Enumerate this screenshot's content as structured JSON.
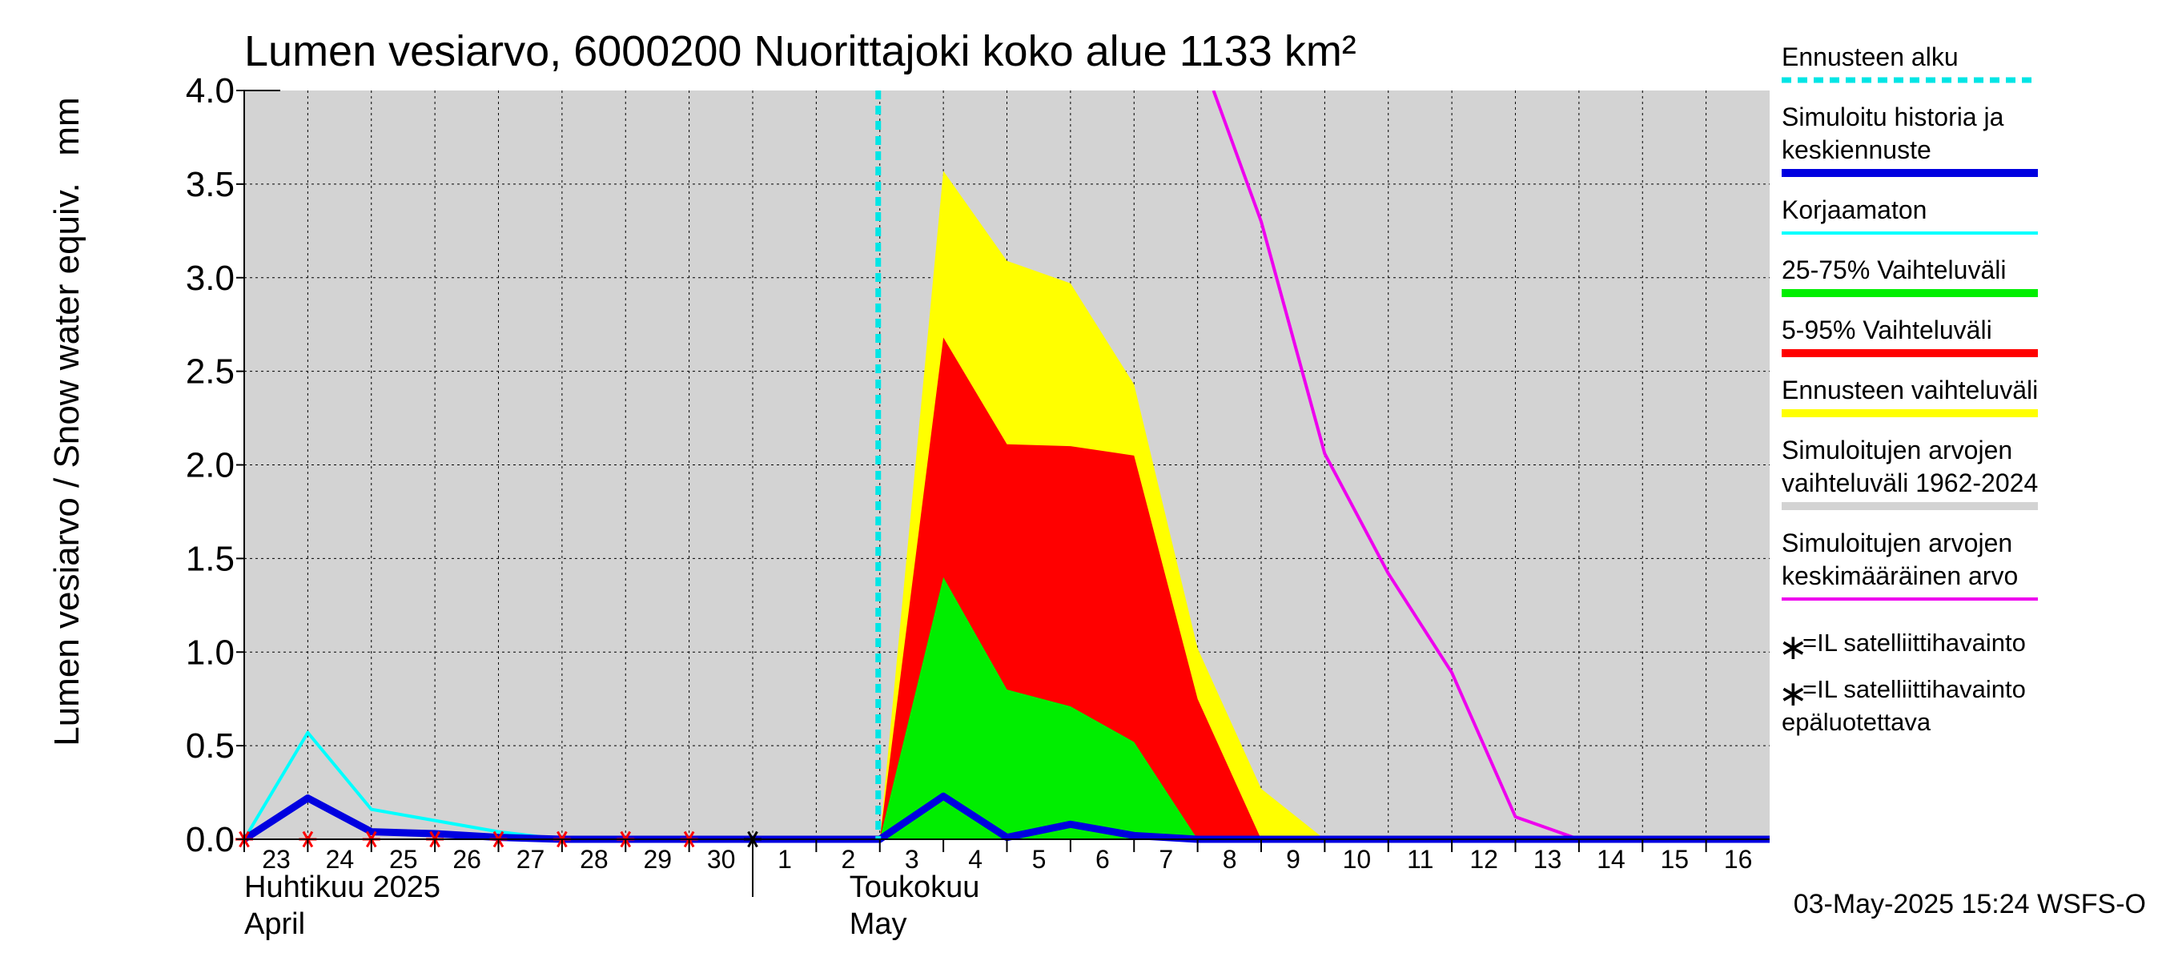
{
  "chart_data": {
    "type": "area",
    "title": "Lumen vesiarvo, 6000200 Nuorittajoki koko alue 1133 km²",
    "ylabel": "Lumen vesiarvo / Snow water equiv.",
    "yunit": "mm",
    "ylim": [
      0,
      4.0
    ],
    "yticks": [
      "0.0",
      "0.5",
      "1.0",
      "1.5",
      "2.0",
      "2.5",
      "3.0",
      "3.5",
      "4.0"
    ],
    "xlim": [
      0,
      24
    ],
    "x_tick_labels": [
      "23",
      "24",
      "25",
      "26",
      "27",
      "28",
      "29",
      "30",
      "1",
      "2",
      "3",
      "4",
      "5",
      "6",
      "7",
      "8",
      "9",
      "10",
      "11",
      "12",
      "13",
      "14",
      "15",
      "16"
    ],
    "month_labels": [
      {
        "fi": "Huhtikuu  2025",
        "en": "April"
      },
      {
        "fi": "Toukokuu",
        "en": "May"
      }
    ],
    "forecast_start_day": 10,
    "series": [
      {
        "name": "Simuloitujen arvojen vaihteluväli 1962-2024",
        "kind": "band",
        "x": [
          0,
          24
        ],
        "lower": [
          0,
          0
        ],
        "upper": [
          4.0,
          4.0
        ]
      },
      {
        "name": "Ennusteen vaihteluväli",
        "kind": "band",
        "x": [
          10,
          11,
          12,
          13,
          14,
          15,
          16,
          17,
          18
        ],
        "lower": [
          0,
          0,
          0,
          0,
          0,
          0,
          0,
          0,
          0
        ],
        "upper": [
          0,
          3.57,
          3.09,
          2.97,
          2.43,
          1.02,
          0.27,
          0,
          0
        ]
      },
      {
        "name": "5-95% Vaihteluväli",
        "kind": "band",
        "x": [
          10,
          11,
          12,
          13,
          14,
          15,
          16
        ],
        "lower": [
          0,
          0,
          0,
          0,
          0,
          0,
          0
        ],
        "upper": [
          0,
          2.68,
          2.11,
          2.1,
          2.05,
          0.75,
          0
        ]
      },
      {
        "name": "25-75% Vaihteluväli",
        "kind": "band",
        "x": [
          10,
          11,
          12,
          13,
          14,
          15
        ],
        "lower": [
          0,
          0,
          0,
          0,
          0,
          0
        ],
        "upper": [
          0,
          1.4,
          0.8,
          0.71,
          0.52,
          0
        ]
      },
      {
        "name": "Simuloitujen arvojen keskimääräinen arvo",
        "kind": "line",
        "x": [
          15.25,
          16,
          17,
          18,
          19,
          20,
          21,
          22,
          23,
          24
        ],
        "y": [
          4.0,
          3.3,
          2.06,
          1.42,
          0.89,
          0.12,
          0,
          0,
          0,
          0
        ]
      },
      {
        "name": "Korjaamaton",
        "kind": "line",
        "x": [
          0,
          1,
          2,
          3,
          4,
          5,
          6,
          7,
          8,
          9,
          10
        ],
        "y": [
          0,
          0.57,
          0.16,
          0.1,
          0.04,
          0,
          0,
          0,
          0,
          0,
          0
        ]
      },
      {
        "name": "Simuloitu historia ja keskiennuste",
        "kind": "line",
        "x": [
          0,
          1,
          2,
          3,
          4,
          5,
          6,
          7,
          8,
          9,
          10,
          11,
          12,
          13,
          14,
          15,
          16,
          17,
          18,
          19,
          20,
          21,
          22,
          23,
          24
        ],
        "y": [
          0,
          0.22,
          0.04,
          0.03,
          0.01,
          0,
          0,
          0,
          0,
          0,
          0,
          0.23,
          0.01,
          0.08,
          0.02,
          0,
          0,
          0,
          0,
          0,
          0,
          0,
          0,
          0,
          0
        ]
      }
    ],
    "observations_reliable": {
      "x": [
        8
      ],
      "y": [
        0
      ]
    },
    "observations_unreliable": {
      "x": [
        0,
        1,
        2,
        3,
        4,
        5,
        6,
        7
      ],
      "y": [
        0,
        0,
        0,
        0,
        0,
        0,
        0,
        0
      ]
    },
    "legend": [
      {
        "id": "forecast-start",
        "lines": [
          "Ennusteen alku"
        ],
        "style": "dashed",
        "color": "#00e5e5"
      },
      {
        "id": "sim-history",
        "lines": [
          "Simuloitu historia ja",
          "keskiennuste"
        ],
        "style": "thick",
        "color": "#0000e0"
      },
      {
        "id": "uncorrected",
        "lines": [
          "Korjaamaton"
        ],
        "style": "line",
        "color": "#00ffff"
      },
      {
        "id": "band-25-75",
        "lines": [
          "25-75% Vaihteluväli"
        ],
        "style": "thick",
        "color": "#00ee00"
      },
      {
        "id": "band-5-95",
        "lines": [
          "5-95% Vaihteluväli"
        ],
        "style": "thick",
        "color": "#ff0000"
      },
      {
        "id": "forecast-range",
        "lines": [
          "Ennusteen vaihteluväli"
        ],
        "style": "thick",
        "color": "#ffff00"
      },
      {
        "id": "sim-range",
        "lines": [
          "Simuloitujen arvojen",
          "vaihteluväli 1962-2024"
        ],
        "style": "thick",
        "color": "#d3d3d3"
      },
      {
        "id": "sim-mean",
        "lines": [
          "Simuloitujen arvojen",
          "keskimääräinen arvo"
        ],
        "style": "line",
        "color": "#ee00ee"
      }
    ],
    "marker_legend": [
      {
        "id": "obs-reliable",
        "symbol": "∗",
        "color": "#000000",
        "lines": [
          "=IL satelliittihavainto"
        ]
      },
      {
        "id": "obs-unreliable",
        "symbol": "∗",
        "color": "#ff0000",
        "lines": [
          "=IL satelliittihavainto",
          "epäluotettava"
        ]
      }
    ],
    "colors": {
      "background": "#d3d3d3",
      "grid": "#000000",
      "forecast_range": "#ffff00",
      "band_5_95": "#ff0000",
      "band_25_75": "#00ee00",
      "mean": "#ee00ee",
      "uncorrected": "#00ffff",
      "history": "#0000e0",
      "forecast_start": "#00e5e5"
    },
    "footer": "03-May-2025 15:24 WSFS-O"
  }
}
